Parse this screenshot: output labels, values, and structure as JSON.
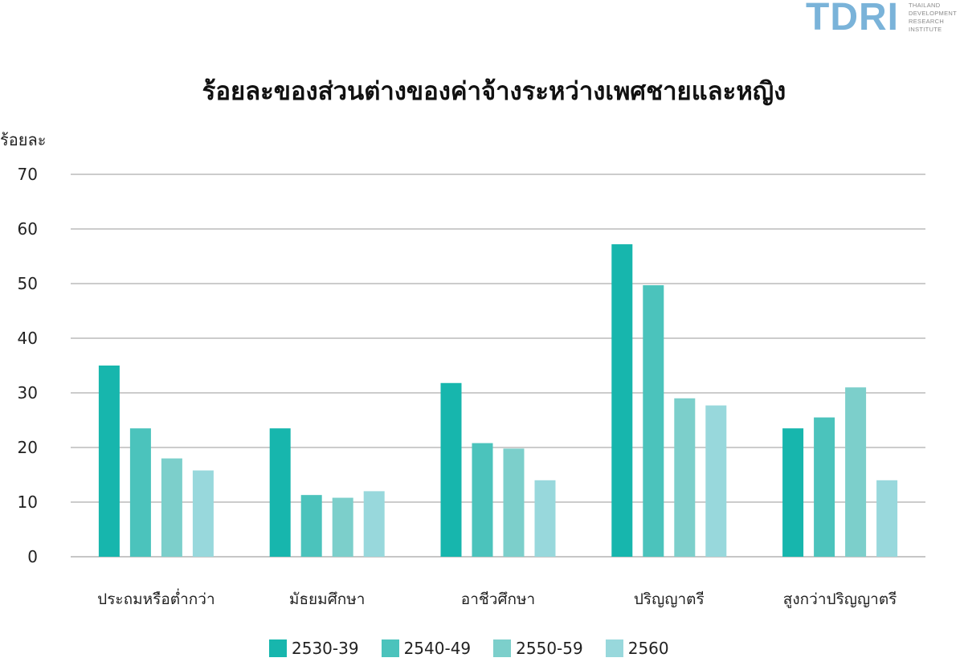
{
  "logo": {
    "mark": "TDRI",
    "lines": [
      "THAILAND",
      "DEVELOPMENT",
      "RESEARCH",
      "INSTITUTE"
    ]
  },
  "chart_data": {
    "type": "bar",
    "title": "ร้อยละของส่วนต่างของค่าจ้างระหว่างเพศชายและหญิง",
    "ylabel": "ร้อยละ",
    "xlabel": "",
    "ylim": [
      0,
      70
    ],
    "yticks": [
      0,
      10,
      20,
      30,
      40,
      50,
      60,
      70
    ],
    "grid": true,
    "legend_position": "bottom",
    "categories": [
      "ประถมหรือต่ำกว่า",
      "มัธยมศึกษา",
      "อาชีวศึกษา",
      "ปริญญาตรี",
      "สูงกว่าปริญญาตรี"
    ],
    "series": [
      {
        "name": "2530-39",
        "color": "#17b6ad",
        "values": [
          35.0,
          23.5,
          31.8,
          57.2,
          23.5
        ]
      },
      {
        "name": "2540-49",
        "color": "#4bc3bc",
        "values": [
          23.5,
          11.3,
          20.8,
          49.7,
          25.5
        ]
      },
      {
        "name": "2550-59",
        "color": "#7ccfcb",
        "values": [
          18.0,
          10.8,
          19.8,
          29.0,
          31.0
        ]
      },
      {
        "name": "2560",
        "color": "#98d8dc",
        "values": [
          15.8,
          12.0,
          14.0,
          27.7,
          14.0
        ]
      }
    ]
  }
}
